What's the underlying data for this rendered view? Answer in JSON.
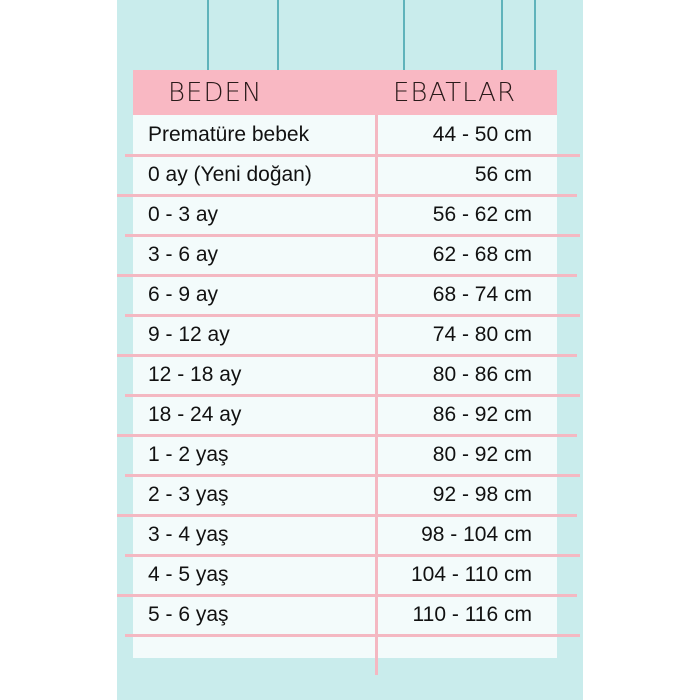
{
  "colors": {
    "background": "#c9ecec",
    "header": "#f9b8c3",
    "lines": "#f4b8c2"
  },
  "table": {
    "headers": [
      "BEDEN",
      "EBATLAR"
    ],
    "rows": [
      [
        "Prematüre bebek",
        "44 - 50 cm"
      ],
      [
        "0 ay (Yeni doğan)",
        "56 cm"
      ],
      [
        "0 - 3 ay",
        "56 - 62 cm"
      ],
      [
        "3 - 6 ay",
        "62 - 68 cm"
      ],
      [
        "6 - 9 ay",
        "68 - 74 cm"
      ],
      [
        "9 - 12 ay",
        "74 - 80 cm"
      ],
      [
        "12 - 18 ay",
        "80 - 86 cm"
      ],
      [
        "18 - 24 ay",
        "86 - 92 cm"
      ],
      [
        "1 - 2 yaş",
        "80 - 92 cm"
      ],
      [
        "2 - 3 yaş",
        "92 - 98 cm"
      ],
      [
        "3 - 4 yaş",
        "98 - 104 cm"
      ],
      [
        "4 - 5 yaş",
        "104 - 110 cm"
      ],
      [
        "5 - 6 yaş",
        "110 - 116 cm"
      ]
    ]
  }
}
